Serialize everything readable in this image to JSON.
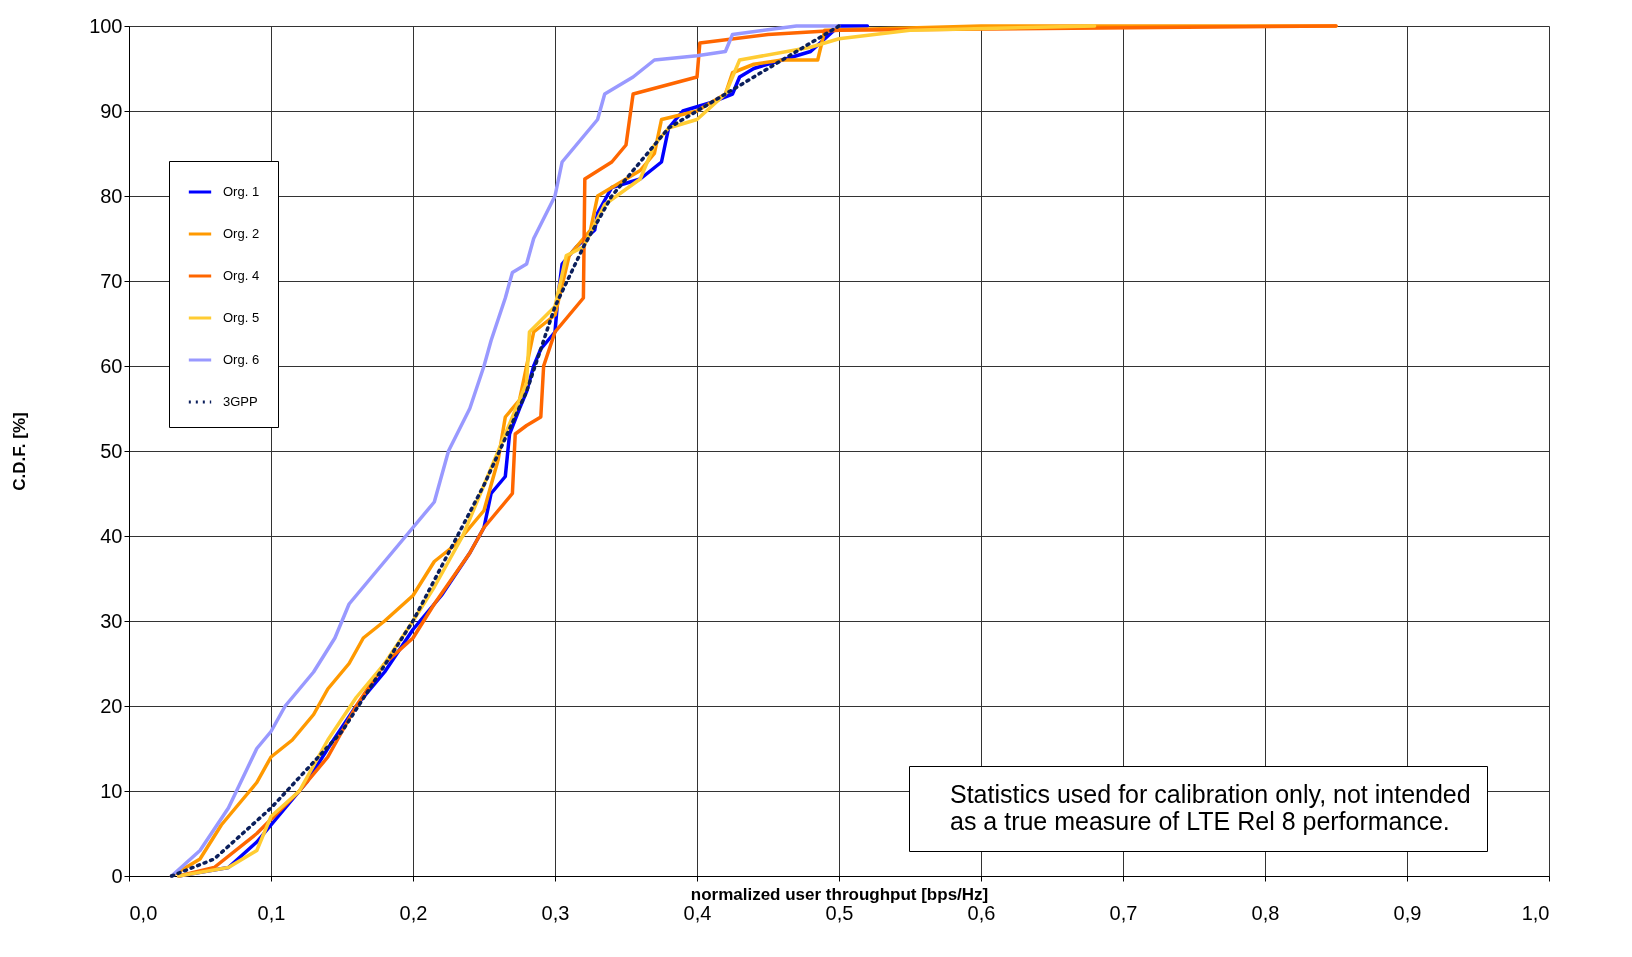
{
  "chart_data": {
    "type": "line",
    "xlabel": "normalized user throughput [bps/Hz]",
    "ylabel": "C.D.F. [%]",
    "xlim": [
      0,
      1
    ],
    "ylim": [
      0,
      100
    ],
    "xticks": [
      {
        "value": 0,
        "label": "0,0"
      },
      {
        "value": 0.1,
        "label": "0,1"
      },
      {
        "value": 0.2,
        "label": "0,2"
      },
      {
        "value": 0.3,
        "label": "0,3"
      },
      {
        "value": 0.4,
        "label": "0,4"
      },
      {
        "value": 0.5,
        "label": "0,5"
      },
      {
        "value": 0.6,
        "label": "0,6"
      },
      {
        "value": 0.7,
        "label": "0,7"
      },
      {
        "value": 0.8,
        "label": "0,8"
      },
      {
        "value": 0.9,
        "label": "0,9"
      },
      {
        "value": 1,
        "label": "1,0"
      }
    ],
    "yticks": [
      0,
      10,
      20,
      30,
      40,
      50,
      60,
      70,
      80,
      90,
      100
    ],
    "grid": true,
    "legend": "top left",
    "marker": "none",
    "annotations": [
      "Statistics used for calibration only, not intended as a true measure of LTE Rel 8 performance."
    ],
    "series": [
      {
        "name": "Org. 1",
        "color": "#0000ff",
        "line_style": "solid",
        "x": [
          0.035,
          0.07,
          0.09,
          0.1,
          0.115,
          0.125,
          0.14,
          0.16,
          0.18,
          0.2,
          0.22,
          0.24,
          0.25,
          0.255,
          0.265,
          0.268,
          0.275,
          0.28,
          0.285,
          0.29,
          0.3,
          0.302,
          0.305,
          0.315,
          0.328,
          0.33,
          0.34,
          0.36,
          0.375,
          0.38,
          0.39,
          0.41,
          0.425,
          0.43,
          0.44,
          0.46,
          0.48,
          0.5,
          0.52
        ],
        "values": [
          0,
          1,
          4,
          6,
          9,
          11,
          15,
          20,
          24,
          29,
          33,
          38,
          41,
          45,
          47,
          52,
          55,
          57,
          60,
          62,
          64,
          68,
          72,
          74,
          76,
          78,
          81,
          82,
          84,
          88,
          90,
          91,
          92,
          94,
          95,
          96,
          97,
          100,
          100
        ]
      },
      {
        "name": "Org. 2",
        "color": "#ff9900",
        "line_style": "solid",
        "x": [
          0.03,
          0.05,
          0.065,
          0.08,
          0.09,
          0.1,
          0.115,
          0.13,
          0.14,
          0.155,
          0.165,
          0.18,
          0.2,
          0.215,
          0.23,
          0.25,
          0.26,
          0.265,
          0.275,
          0.28,
          0.285,
          0.3,
          0.31,
          0.325,
          0.33,
          0.34,
          0.36,
          0.37,
          0.375,
          0.4,
          0.42,
          0.425,
          0.44,
          0.46,
          0.485,
          0.49,
          0.6,
          0.85
        ],
        "values": [
          0,
          2,
          6,
          9,
          11,
          14,
          16,
          19,
          22,
          25,
          28,
          30,
          33,
          37,
          39,
          43,
          49,
          54,
          56,
          60,
          64,
          66,
          73,
          76,
          80,
          81,
          83,
          85,
          89,
          90,
          92,
          94.5,
          95.5,
          96,
          96,
          99.5,
          100,
          100
        ]
      },
      {
        "name": "Org. 4",
        "color": "#ff6600",
        "line_style": "solid",
        "x": [
          0.035,
          0.06,
          0.09,
          0.12,
          0.14,
          0.16,
          0.18,
          0.2,
          0.215,
          0.24,
          0.25,
          0.26,
          0.27,
          0.272,
          0.28,
          0.29,
          0.292,
          0.3,
          0.31,
          0.32,
          0.321,
          0.34,
          0.35,
          0.355,
          0.4,
          0.402,
          0.45,
          0.5,
          0.85
        ],
        "values": [
          0,
          1,
          5,
          10,
          14,
          20,
          25,
          28,
          32,
          38,
          41,
          43,
          45,
          52,
          53,
          54,
          60,
          64,
          66,
          68,
          82,
          84,
          86,
          92,
          94,
          98,
          99,
          99.5,
          100
        ]
      },
      {
        "name": "Org. 5",
        "color": "#ffcc33",
        "line_style": "solid",
        "x": [
          0.035,
          0.07,
          0.09,
          0.1,
          0.12,
          0.14,
          0.16,
          0.18,
          0.2,
          0.215,
          0.235,
          0.25,
          0.26,
          0.27,
          0.28,
          0.282,
          0.3,
          0.308,
          0.32,
          0.335,
          0.36,
          0.37,
          0.38,
          0.4,
          0.42,
          0.43,
          0.48,
          0.5,
          0.55,
          0.68
        ],
        "values": [
          0,
          1,
          3,
          7,
          10,
          16,
          21,
          25,
          30,
          34,
          40,
          46,
          50,
          54,
          58,
          64,
          67,
          73,
          74,
          79,
          82,
          86,
          88,
          89,
          92,
          96,
          97.5,
          98.5,
          99.5,
          100
        ]
      },
      {
        "name": "Org. 6",
        "color": "#9999ff",
        "line_style": "solid",
        "x": [
          0.03,
          0.05,
          0.07,
          0.09,
          0.1,
          0.11,
          0.13,
          0.145,
          0.155,
          0.17,
          0.185,
          0.2,
          0.215,
          0.225,
          0.24,
          0.25,
          0.255,
          0.265,
          0.27,
          0.28,
          0.285,
          0.3,
          0.305,
          0.315,
          0.33,
          0.335,
          0.355,
          0.37,
          0.4,
          0.42,
          0.425,
          0.47,
          0.5
        ],
        "values": [
          0,
          3,
          8,
          15,
          17,
          20,
          24,
          28,
          32,
          35,
          38,
          41,
          44,
          50,
          55,
          60,
          63,
          68,
          71,
          72,
          75,
          80,
          84,
          86,
          89,
          92,
          94,
          96,
          96.5,
          97,
          99,
          100,
          100
        ]
      },
      {
        "name": "3GPP",
        "color": "#0b1f5c",
        "line_style": "dotted",
        "x": [
          0.03,
          0.06,
          0.1,
          0.15,
          0.2,
          0.25,
          0.28,
          0.3,
          0.32,
          0.34,
          0.38,
          0.4,
          0.43,
          0.46,
          0.5
        ],
        "values": [
          0,
          2,
          8,
          17,
          30,
          46,
          57,
          67,
          74,
          80,
          88,
          90,
          93,
          96,
          100
        ]
      }
    ]
  }
}
